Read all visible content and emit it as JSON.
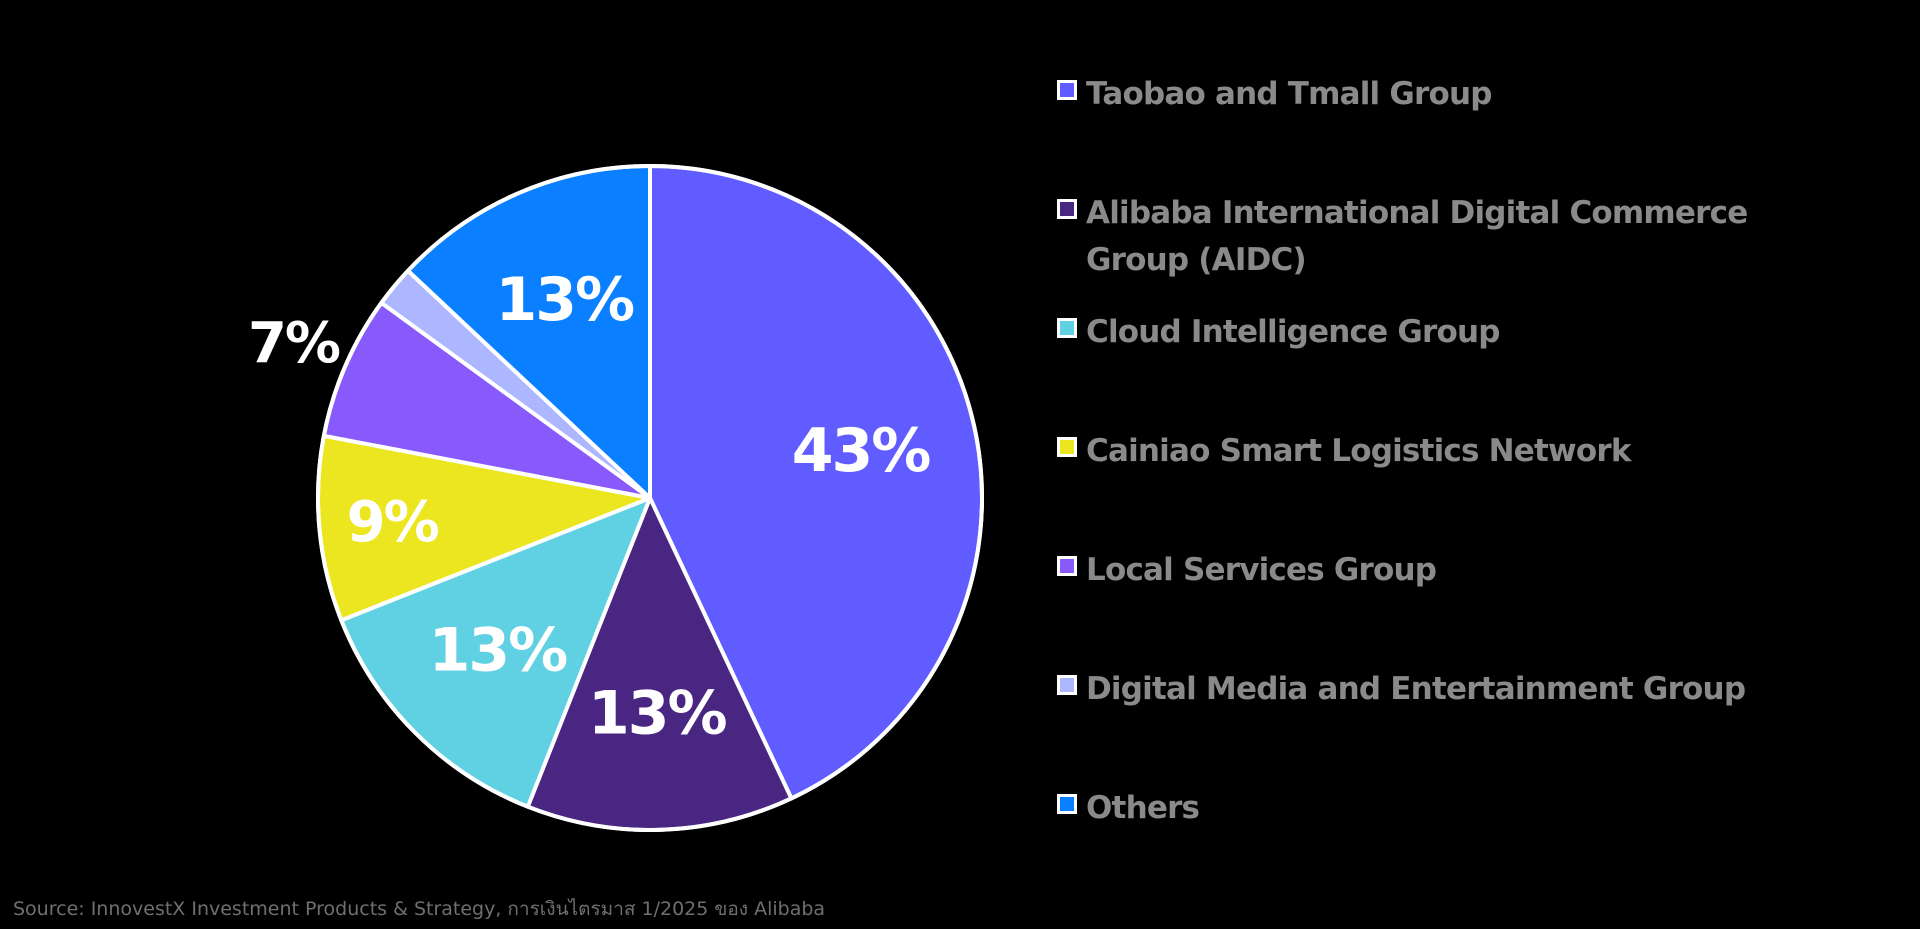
{
  "chart_data": {
    "type": "pie",
    "title": "",
    "slices": [
      {
        "name": "Taobao and Tmall Group",
        "value": 43,
        "label": "43%",
        "color": "#615cff"
      },
      {
        "name": "Alibaba International Digital Commerce Group (AIDC)",
        "value": 13,
        "label": "13%",
        "color": "#482682"
      },
      {
        "name": "Cloud Intelligence Group",
        "value": 13,
        "label": "13%",
        "color": "#60d1e2"
      },
      {
        "name": "Cainiao Smart Logistics Network",
        "value": 9,
        "label": "9%",
        "color": "#ebe61f"
      },
      {
        "name": "Local Services Group",
        "value": 7,
        "label": "7%",
        "color": "#8859fb"
      },
      {
        "name": "Digital Media and Entertainment Group",
        "value": 2,
        "label": "",
        "color": "#acb7ff"
      },
      {
        "name": "Others",
        "value": 13,
        "label": "13%",
        "color": "#0a7fff"
      }
    ],
    "start": "12 o'clock",
    "direction": "clockwise",
    "legend_position": "right",
    "slice_border_color": "#ffffff"
  },
  "legend": {
    "items": [
      {
        "label": "Taobao and Tmall Group",
        "color": "#615cff"
      },
      {
        "label": "Alibaba International Digital Commerce Group (AIDC)",
        "color": "#482682"
      },
      {
        "label": "Cloud Intelligence Group",
        "color": "#60d1e2"
      },
      {
        "label": "Cainiao Smart Logistics Network",
        "color": "#ebe61f"
      },
      {
        "label": "Local Services Group",
        "color": "#8859fb"
      },
      {
        "label": "Digital Media and Entertainment Group",
        "color": "#acb7ff"
      },
      {
        "label": "Others",
        "color": "#0a7fff"
      }
    ]
  },
  "footer": {
    "source": "Source: InnovestX Investment Products & Strategy, การเงินไตรมาส 1/2025 ของ Alibaba"
  },
  "colors": {
    "background": "#000000",
    "legend_text": "#8a8a8a",
    "source_text": "#6f6f6f",
    "data_label": "#ffffff"
  }
}
